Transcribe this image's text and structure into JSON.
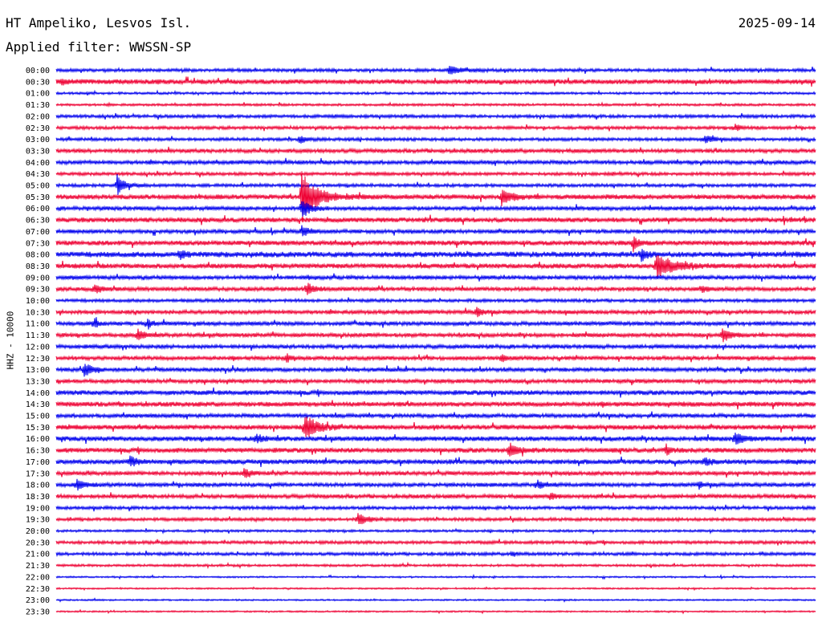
{
  "header": {
    "station": "HT Ampeliko, Lesvos Isl.",
    "date": "2025-09-14",
    "filter": "Applied filter: WWSSN-SP",
    "channel_label": "HHZ - 10000"
  },
  "colors": {
    "even_trace": "#0000ee",
    "odd_trace": "#ee0033",
    "text": "#000000"
  },
  "chart_data": {
    "type": "line",
    "title": "HT Ampeliko, Lesvos Isl.",
    "subtitle": "Applied filter: WWSSN-SP",
    "ylabel": "HHZ - 10000",
    "xlabel": "",
    "grid": false,
    "trace_minutes": 30,
    "tick_labels": [
      "00:00",
      "00:30",
      "01:00",
      "01:30",
      "02:00",
      "02:30",
      "03:00",
      "03:30",
      "04:00",
      "04:30",
      "05:00",
      "05:30",
      "06:00",
      "06:30",
      "07:00",
      "07:30",
      "08:00",
      "08:30",
      "09:00",
      "09:30",
      "10:00",
      "10:30",
      "11:00",
      "11:30",
      "12:00",
      "12:30",
      "13:00",
      "13:30",
      "14:00",
      "14:30",
      "15:00",
      "15:30",
      "16:00",
      "16:30",
      "17:00",
      "17:30",
      "18:00",
      "18:30",
      "19:00",
      "19:30",
      "20:00",
      "20:30",
      "21:00",
      "21:30",
      "22:00",
      "22:30",
      "23:00",
      "23:30"
    ],
    "noise_level": [
      2,
      3,
      1.5,
      1.5,
      2,
      2,
      2,
      2.5,
      2.5,
      2,
      2,
      3,
      2.5,
      3,
      2.5,
      3,
      3.5,
      3,
      2.5,
      2.5,
      2,
      2.5,
      2.5,
      2.5,
      2.5,
      2.5,
      2.5,
      2.5,
      3,
      3,
      2.5,
      3,
      3,
      3,
      3,
      2.5,
      2.5,
      2.5,
      2,
      2,
      1.5,
      2,
      2,
      1.5,
      1,
      1,
      1,
      1
    ],
    "events": [
      {
        "row": 0,
        "minute": 15.5,
        "amp": 5,
        "dur": 1.2
      },
      {
        "row": 1,
        "minute": 0.2,
        "amp": 3,
        "dur": 0.6
      },
      {
        "row": 5,
        "minute": 26.8,
        "amp": 4,
        "dur": 0.5
      },
      {
        "row": 6,
        "minute": 9.6,
        "amp": 5,
        "dur": 0.5
      },
      {
        "row": 6,
        "minute": 25.6,
        "amp": 6,
        "dur": 0.6
      },
      {
        "row": 10,
        "minute": 2.4,
        "amp": 13,
        "dur": 0.6
      },
      {
        "row": 11,
        "minute": 9.7,
        "amp": 32,
        "dur": 1.2
      },
      {
        "row": 11,
        "minute": 17.6,
        "amp": 9,
        "dur": 0.8
      },
      {
        "row": 12,
        "minute": 9.7,
        "amp": 14,
        "dur": 0.6
      },
      {
        "row": 14,
        "minute": 9.7,
        "amp": 8,
        "dur": 0.5
      },
      {
        "row": 15,
        "minute": 22.8,
        "amp": 9,
        "dur": 0.4
      },
      {
        "row": 16,
        "minute": 4.9,
        "amp": 6,
        "dur": 0.4
      },
      {
        "row": 16,
        "minute": 23.1,
        "amp": 9,
        "dur": 0.4
      },
      {
        "row": 17,
        "minute": 23.7,
        "amp": 14,
        "dur": 1.5
      },
      {
        "row": 19,
        "minute": 1.5,
        "amp": 6,
        "dur": 0.6
      },
      {
        "row": 19,
        "minute": 9.9,
        "amp": 8,
        "dur": 0.6
      },
      {
        "row": 19,
        "minute": 25.5,
        "amp": 5,
        "dur": 0.4
      },
      {
        "row": 21,
        "minute": 16.6,
        "amp": 7,
        "dur": 0.4
      },
      {
        "row": 22,
        "minute": 1.5,
        "amp": 7,
        "dur": 0.3
      },
      {
        "row": 22,
        "minute": 3.6,
        "amp": 7,
        "dur": 0.4
      },
      {
        "row": 23,
        "minute": 3.2,
        "amp": 8,
        "dur": 0.5
      },
      {
        "row": 23,
        "minute": 26.3,
        "amp": 9,
        "dur": 0.6
      },
      {
        "row": 25,
        "minute": 9.1,
        "amp": 6,
        "dur": 0.3
      },
      {
        "row": 25,
        "minute": 17.6,
        "amp": 5,
        "dur": 0.3
      },
      {
        "row": 26,
        "minute": 1.1,
        "amp": 9,
        "dur": 0.6
      },
      {
        "row": 31,
        "minute": 9.8,
        "amp": 16,
        "dur": 1.0
      },
      {
        "row": 32,
        "minute": 7.9,
        "amp": 6,
        "dur": 0.5
      },
      {
        "row": 32,
        "minute": 26.8,
        "amp": 8,
        "dur": 0.8
      },
      {
        "row": 33,
        "minute": 17.9,
        "amp": 9,
        "dur": 0.7
      },
      {
        "row": 33,
        "minute": 24.1,
        "amp": 6,
        "dur": 0.3
      },
      {
        "row": 34,
        "minute": 2.9,
        "amp": 6,
        "dur": 0.6
      },
      {
        "row": 34,
        "minute": 25.6,
        "amp": 6,
        "dur": 0.5
      },
      {
        "row": 35,
        "minute": 7.4,
        "amp": 6,
        "dur": 0.5
      },
      {
        "row": 36,
        "minute": 0.8,
        "amp": 8,
        "dur": 0.6
      },
      {
        "row": 36,
        "minute": 19.0,
        "amp": 6,
        "dur": 0.6
      },
      {
        "row": 36,
        "minute": 25.4,
        "amp": 5,
        "dur": 0.3
      },
      {
        "row": 37,
        "minute": 19.5,
        "amp": 4,
        "dur": 0.6
      },
      {
        "row": 39,
        "minute": 11.9,
        "amp": 8,
        "dur": 0.8
      },
      {
        "row": 42,
        "minute": 18.0,
        "amp": 4,
        "dur": 0.3
      }
    ]
  }
}
